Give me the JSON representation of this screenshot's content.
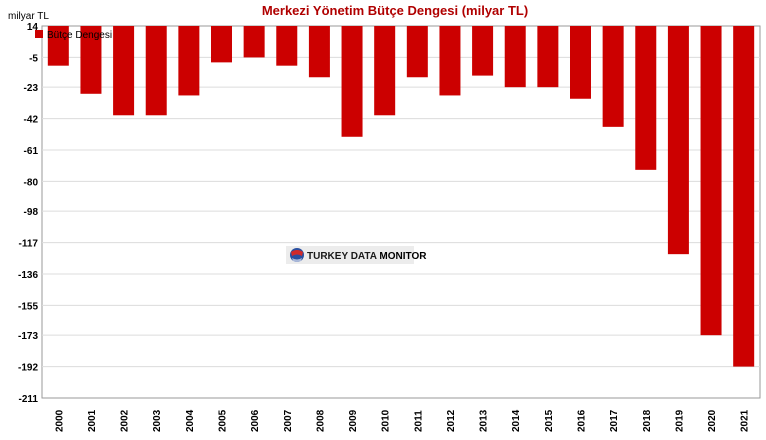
{
  "chart_data": {
    "type": "bar",
    "title": "Merkezi Yönetim Bütçe Dengesi (milyar TL)",
    "unit_label": "milyar TL",
    "legend": {
      "label": "Bütçe Dengesi",
      "placement": "top-left"
    },
    "categories": [
      "2000",
      "2001",
      "2002",
      "2003",
      "2004",
      "2005",
      "2006",
      "2007",
      "2008",
      "2009",
      "2010",
      "2011",
      "2012",
      "2013",
      "2014",
      "2015",
      "2016",
      "2017",
      "2018",
      "2019",
      "2020",
      "2021"
    ],
    "series": [
      {
        "name": "Bütçe Dengesi",
        "color": "#cc0000",
        "values": [
          -10,
          -27,
          -40,
          -40,
          -28,
          -8,
          -5,
          -10,
          -17,
          -53,
          -40,
          -17,
          -28,
          -16,
          -23,
          -23,
          -30,
          -47,
          -73,
          -124,
          -173,
          -192
        ]
      }
    ],
    "yticks": [
      "14",
      "-5",
      "-23",
      "-42",
      "-61",
      "-80",
      "-98",
      "-117",
      "-136",
      "-155",
      "-173",
      "-192",
      "-211"
    ],
    "ylim": [
      -211,
      14
    ],
    "grid": true
  },
  "watermark": {
    "text_a": "TURKEY DATA ",
    "text_b": "MONITOR"
  }
}
